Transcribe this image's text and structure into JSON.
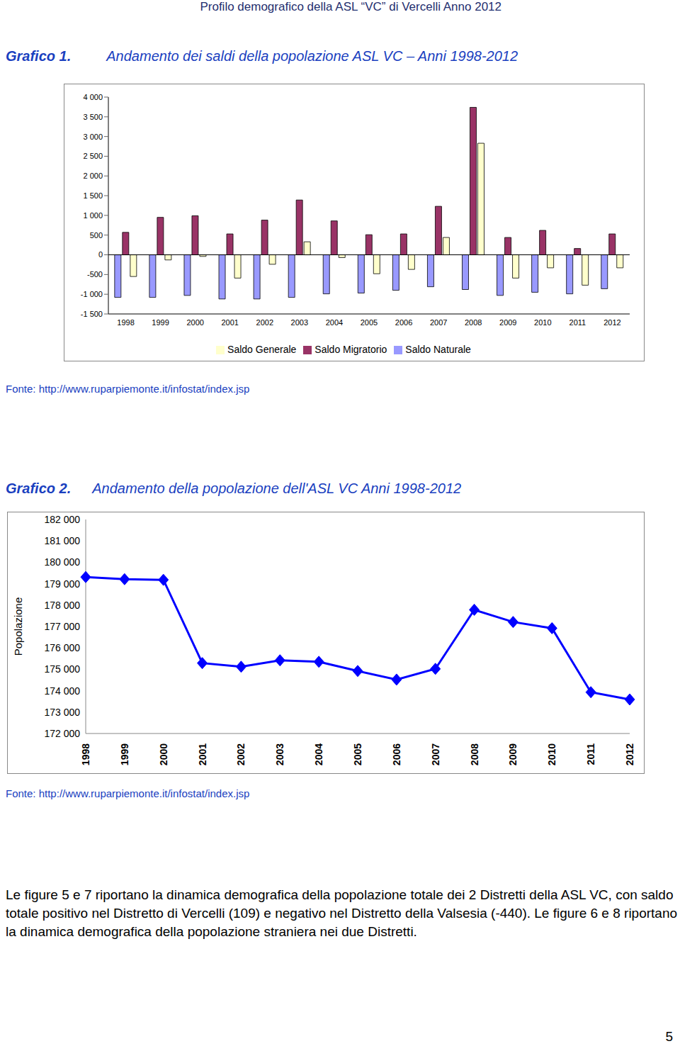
{
  "header": "Profilo demografico della ASL “VC” di Vercelli Anno 2012",
  "chart_data": [
    {
      "type": "bar",
      "label": "Grafico 1.",
      "title": "Andamento dei saldi della popolazione ASL VC – Anni 1998-2012",
      "source": "Fonte: http://www.ruparpiemonte.it/infostat/index.jsp",
      "categories": [
        "1998",
        "1999",
        "2000",
        "2001",
        "2002",
        "2003",
        "2004",
        "2005",
        "2006",
        "2007",
        "2008",
        "2009",
        "2010",
        "2011",
        "2012"
      ],
      "series": [
        {
          "name": "Saldo Naturale",
          "color": "#9999ff",
          "values": [
            -1080,
            -1080,
            -1030,
            -1120,
            -1120,
            -1080,
            -990,
            -970,
            -900,
            -810,
            -880,
            -1030,
            -950,
            -990,
            -860
          ]
        },
        {
          "name": "Saldo Migratorio",
          "color": "#993366",
          "values": [
            570,
            950,
            990,
            530,
            880,
            1390,
            860,
            510,
            530,
            1230,
            3740,
            440,
            620,
            160,
            530
          ]
        },
        {
          "name": "Saldo Generale",
          "color": "#ffffcc",
          "values": [
            -550,
            -130,
            -40,
            -590,
            -240,
            330,
            -70,
            -480,
            -370,
            440,
            2830,
            -590,
            -330,
            -770,
            -330
          ]
        }
      ],
      "ylim": [
        -1500,
        4000
      ],
      "yticks": [
        {
          "value": -1500,
          "label": "-1 500"
        },
        {
          "value": -1000,
          "label": "-1 000"
        },
        -500,
        0,
        500,
        {
          "value": 1000,
          "label": "1 000"
        },
        {
          "value": 1500,
          "label": "1 500"
        },
        {
          "value": 2000,
          "label": "2 000"
        },
        {
          "value": 2500,
          "label": "2 500"
        },
        {
          "value": 3000,
          "label": "3 000"
        },
        {
          "value": 3500,
          "label": "3 500"
        },
        {
          "value": 4000,
          "label": "4 000"
        }
      ],
      "grid": false,
      "legend": "bottom"
    },
    {
      "type": "line",
      "label": "Grafico 2.",
      "title": "Andamento della popolazione dell'ASL VC Anni 1998-2012",
      "source": "Fonte: http://www.ruparpiemonte.it/infostat/index.jsp",
      "y_label": "Popolazione",
      "categories": [
        "1998",
        "1999",
        "2000",
        "2001",
        "2002",
        "2003",
        "2004",
        "2005",
        "2006",
        "2007",
        "2008",
        "2009",
        "2010",
        "2011",
        "2012"
      ],
      "values": [
        179310,
        179210,
        179180,
        175290,
        175120,
        175420,
        175350,
        174920,
        174520,
        175020,
        177780,
        177210,
        176920,
        173930,
        173590
      ],
      "color": "#0000ff",
      "marker": "diamond",
      "ylim": [
        172000,
        182000
      ],
      "yticks": [
        {
          "value": 172000,
          "label": "172 000"
        },
        {
          "value": 173000,
          "label": "173 000"
        },
        {
          "value": 174000,
          "label": "174 000"
        },
        {
          "value": 175000,
          "label": "175 000"
        },
        {
          "value": 176000,
          "label": "176 000"
        },
        {
          "value": 177000,
          "label": "177 000"
        },
        {
          "value": 178000,
          "label": "178 000"
        },
        {
          "value": 179000,
          "label": "179 000"
        },
        {
          "value": 180000,
          "label": "180 000"
        },
        {
          "value": 181000,
          "label": "181 000"
        },
        {
          "value": 182000,
          "label": "182 000"
        }
      ],
      "grid": false
    }
  ],
  "paragraph": "Le figure 5 e 7 riportano la dinamica demografica della popolazione totale dei 2 Distretti della ASL VC, con saldo totale positivo nel Distretto di Vercelli (109) e negativo nel Distretto della Valsesia (-440). Le figure 6 e 8 riportano la dinamica demografica della popolazione straniera nei due Distretti.",
  "page_number": "5"
}
